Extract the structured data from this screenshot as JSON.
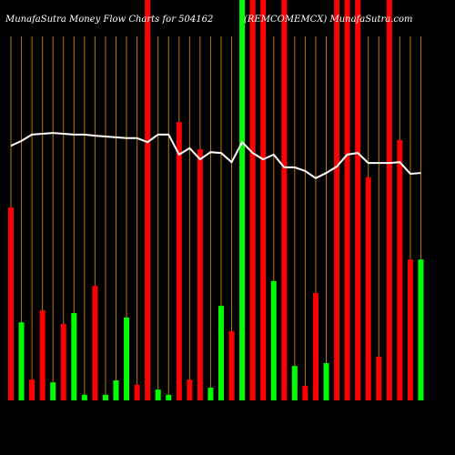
{
  "chart_data": {
    "type": "bar",
    "title": "MunafaSutra  Money Flow  Charts for 504162",
    "subtitle": "(REMCOMEMCX) MunafaSutra.com",
    "ylim": [
      0,
      100
    ],
    "grid": true,
    "grid_color": "#b8760a",
    "values": [
      48.2,
      19.5,
      5.2,
      22.5,
      4.5,
      19.1,
      21.8,
      1.4,
      28.6,
      1.4,
      5,
      20.7,
      3.9,
      100,
      2.7,
      1.4,
      69.5,
      5.2,
      62.7,
      3.2,
      23.6,
      17.3,
      100,
      100,
      100,
      29.8,
      100,
      8.6,
      3.6,
      26.8,
      9.3,
      100,
      100,
      100,
      55.7,
      10.9,
      100,
      65,
      35.2,
      35.2
    ],
    "colors": [
      "#ff0000",
      "#00ff00",
      "#ff0000",
      "#ff0000",
      "#00ff00",
      "#ff0000",
      "#00ff00",
      "#00ff00",
      "#ff0000",
      "#00ff00",
      "#00ff00",
      "#00ff00",
      "#ff0000",
      "#ff0000",
      "#00ff00",
      "#00ff00",
      "#ff0000",
      "#ff0000",
      "#ff0000",
      "#00ff00",
      "#00ff00",
      "#ff0000",
      "#00ff00",
      "#ff0000",
      "#ff0000",
      "#00ff00",
      "#ff0000",
      "#00ff00",
      "#ff0000",
      "#ff0000",
      "#00ff00",
      "#ff0000",
      "#ff0000",
      "#ff0000",
      "#ff0000",
      "#ff0000",
      "#ff0000",
      "#ff0000",
      "#ff0000",
      "#00ff00"
    ],
    "line": {
      "color": "#ffffff",
      "values": [
        63.6,
        64.8,
        66.4,
        66.6,
        66.8,
        66.6,
        66.4,
        66.4,
        66.1,
        65.9,
        65.7,
        65.5,
        65.5,
        64.5,
        66.4,
        66.4,
        61.4,
        63,
        60.2,
        62,
        61.8,
        59.5,
        64.5,
        61.8,
        60.2,
        61.4,
        58.2,
        58.2,
        57.3,
        55.5,
        56.8,
        58.4,
        61.4,
        61.8,
        59.3,
        59.3,
        59.3,
        59.5,
        56.6,
        56.8
      ]
    }
  }
}
